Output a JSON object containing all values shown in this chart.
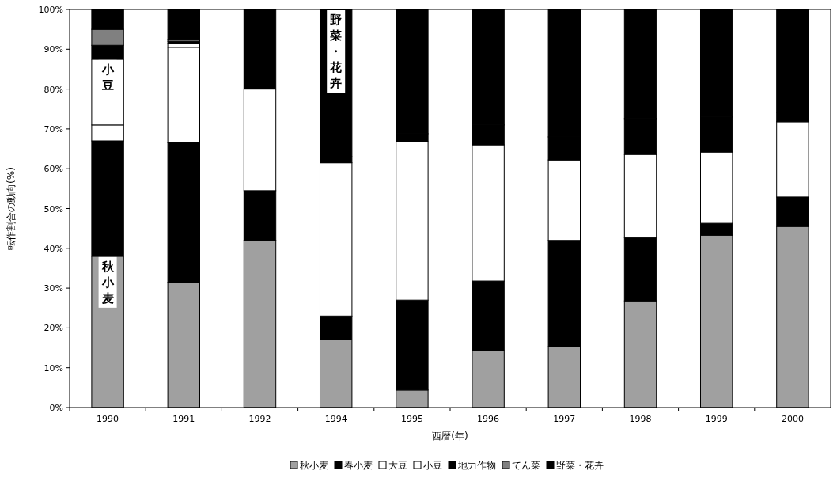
{
  "chart_data": {
    "type": "bar",
    "stacked": true,
    "xlabel": "西暦(年)",
    "ylabel": "転作割合の動向(%)",
    "categories": [
      "1990",
      "1991",
      "1992",
      "1994",
      "1995",
      "1996",
      "1997",
      "1998",
      "1999",
      "2000"
    ],
    "ylim": [
      0,
      100
    ],
    "yticks": [
      {
        "value": 0,
        "label": "0%"
      },
      {
        "value": 10,
        "label": "10%"
      },
      {
        "value": 20,
        "label": "20%"
      },
      {
        "value": 30,
        "label": "30%"
      },
      {
        "value": 40,
        "label": "40%"
      },
      {
        "value": 50,
        "label": "50%"
      },
      {
        "value": 60,
        "label": "60%"
      },
      {
        "value": 70,
        "label": "70%"
      },
      {
        "value": 80,
        "label": "80%"
      },
      {
        "value": 90,
        "label": "90%"
      },
      {
        "value": 100,
        "label": "100%"
      }
    ],
    "series": [
      {
        "name": "秋小麦",
        "color": "#a0a0a0",
        "values": [
          38,
          31.5,
          42,
          17,
          4.4,
          14.3,
          15.3,
          26.8,
          43.3,
          45.5
        ]
      },
      {
        "name": "春小麦",
        "color": "#000000",
        "values": [
          29,
          35,
          12.5,
          6,
          22.6,
          17.5,
          26.7,
          15.9,
          3,
          7.4
        ]
      },
      {
        "name": "大豆",
        "color": "#ffffff",
        "values": [
          4,
          24,
          25.5,
          38.5,
          39.8,
          34.2,
          20.2,
          20.9,
          17.9,
          18.9
        ]
      },
      {
        "name": "小豆",
        "color": "#ffffff",
        "values": [
          16.5,
          1,
          0,
          0,
          0,
          0,
          0,
          0,
          0,
          0
        ]
      },
      {
        "name": "地力作物",
        "color": "#000000",
        "values": [
          3.5,
          0.5,
          0,
          1.5,
          2,
          5,
          5.8,
          9,
          8.8,
          2.4
        ]
      },
      {
        "name": "てん菜",
        "color": "#808080",
        "values": [
          4,
          0.5,
          0,
          0,
          0,
          0,
          0,
          0,
          0,
          0
        ]
      },
      {
        "name": "野菜・花卉",
        "color": "#000000",
        "values": [
          5,
          7.5,
          20,
          37,
          31.2,
          29,
          32,
          27.4,
          27,
          25.8
        ]
      }
    ],
    "annotations": [
      {
        "text": "小豆",
        "x": "1990",
        "y": 87.5
      },
      {
        "text": "秋小麦",
        "x": "1990",
        "y": 38
      },
      {
        "text": "野菜・花卉",
        "x": "1994",
        "y": 100
      }
    ],
    "legend": "bottom",
    "grid": false
  }
}
